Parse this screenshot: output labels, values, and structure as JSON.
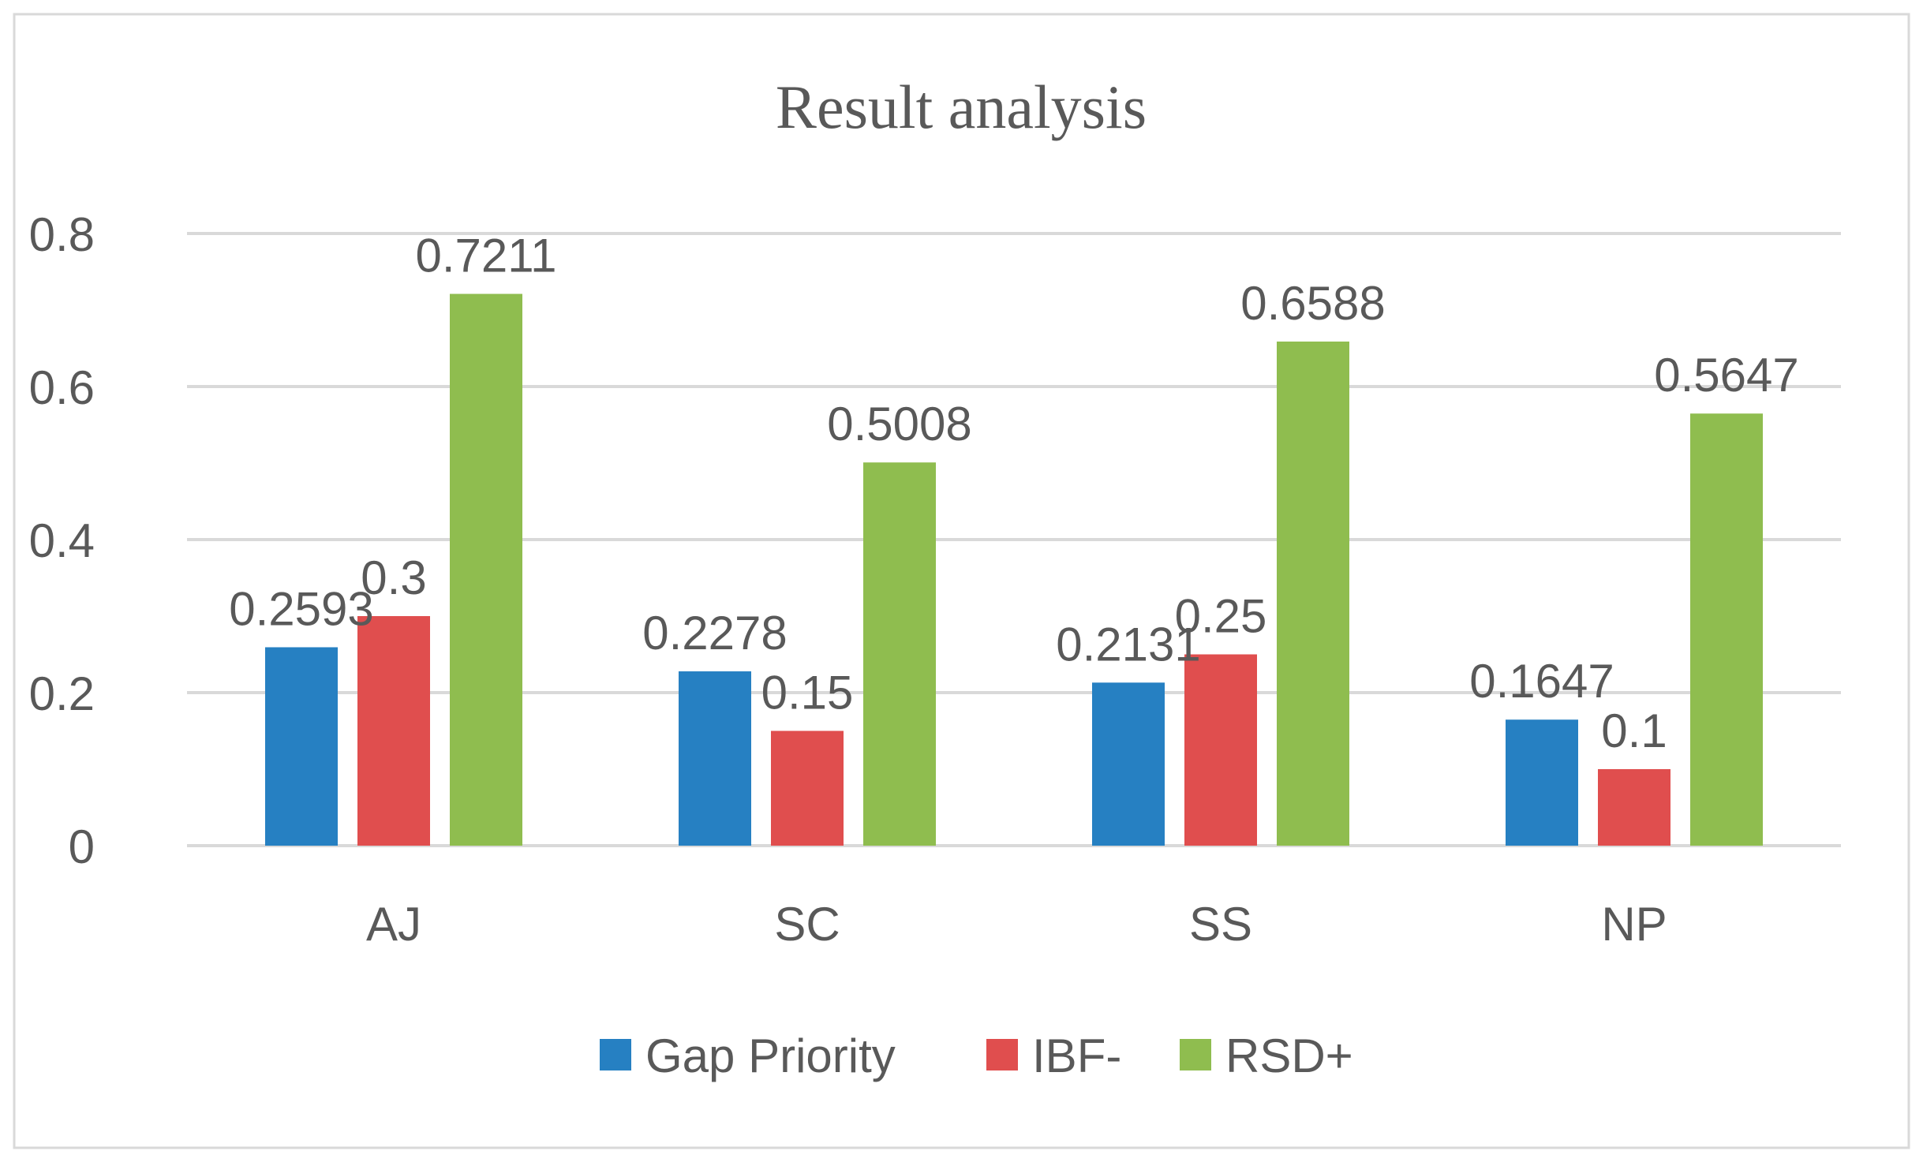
{
  "chart_data": {
    "type": "bar",
    "title": "Result analysis",
    "xlabel": "",
    "ylabel": "",
    "ylim": [
      0,
      0.8
    ],
    "yticks": [
      "0",
      "0.2",
      "0.4",
      "0.6",
      "0.8"
    ],
    "ytick_values": [
      0,
      0.2,
      0.4,
      0.6,
      0.8
    ],
    "categories": [
      "AJ",
      "SC",
      "SS",
      "NP"
    ],
    "series": [
      {
        "name": "Gap Priority",
        "color": "#2680c2",
        "values": [
          0.2593,
          0.2278,
          0.2131,
          0.1647
        ],
        "labels": [
          "0.2593",
          "0.2278",
          "0.2131",
          "0.1647"
        ]
      },
      {
        "name": "IBF-",
        "color": "#e04e4e",
        "values": [
          0.3,
          0.15,
          0.25,
          0.1
        ],
        "labels": [
          "0.3",
          "0.15",
          "0.25",
          "0.1"
        ]
      },
      {
        "name": "RSD+",
        "color": "#8fbd4f",
        "values": [
          0.7211,
          0.5008,
          0.6588,
          0.5647
        ],
        "labels": [
          "0.7211",
          "0.5008",
          "0.6588",
          "0.5647"
        ]
      }
    ],
    "grid": true,
    "legend_position": "bottom"
  },
  "colors": {
    "grid": "#d9d9d9",
    "text": "#595959",
    "border": "#d9d9d9"
  }
}
